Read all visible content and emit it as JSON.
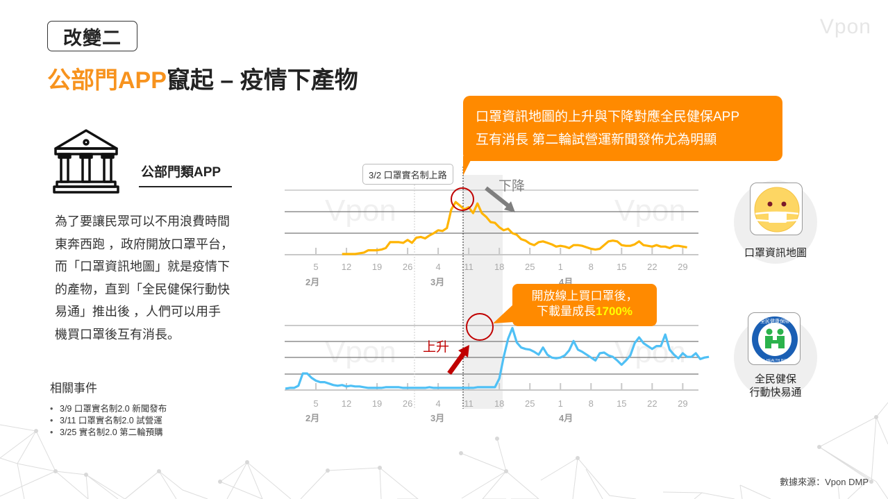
{
  "brand": "Vpon",
  "header": {
    "tag": "改變二",
    "title_accent": "公部門APP",
    "title_rest": "竄起 – 疫情下產物"
  },
  "category": {
    "icon": "government-building-icon",
    "label": "公部門類APP"
  },
  "description": [
    "為了要讓民眾可以不用浪費時間",
    "東奔西跑 ，政府開放口罩平台，",
    "而「口罩資訊地圖」就是疫情下",
    "的產物，直到「全民健保行動快",
    "易通」推出後 ，人們可以用手",
    "機買口罩後互有消長。"
  ],
  "events": {
    "title": "相關事件",
    "items": [
      "3/9 口罩實名制2.0 新聞發布",
      "3/11 口罩實名制2.0 試營運",
      "3/25 實名制2.0 第二輪預購"
    ]
  },
  "callouts": {
    "top_line1": "口罩資訊地圖的上升與下降對應全民健保APP",
    "top_line2": "互有消長 第二輪試營運新聞發佈尤為明顯",
    "bottom_line1": "開放線上買口罩後，",
    "bottom_line2_prefix": "下載量成長",
    "bottom_line2_highlight": "1700%",
    "date_tag": "3/2 口罩實名制上路",
    "down_label": "下降",
    "up_label": "上升"
  },
  "apps": [
    {
      "name": "口罩資訊地圖",
      "icon": "mask-face-icon"
    },
    {
      "name_line1": "全民健保",
      "name_line2": "行動快易通",
      "icon": "nhi-logo-icon"
    }
  ],
  "source": "數據來源：Vpon DMP",
  "colors": {
    "accent": "#f7931e",
    "callout": "#ff8a00",
    "series_mask_map": "#ffb400",
    "series_nhi": "#4fc0f5",
    "highlight_circle": "#c00000",
    "up_arrow": "#c00000",
    "down_arrow": "#7f7f7f",
    "highlight_band": "#efefef"
  },
  "chart_data": [
    {
      "type": "line",
      "title": "口罩資訊地圖",
      "xlabel": "",
      "ylabel": "",
      "x_ticks": [
        "5",
        "12",
        "19",
        "26",
        "4",
        "11",
        "18",
        "25",
        "1",
        "8",
        "15",
        "22",
        "29"
      ],
      "month_labels": [
        "2月",
        "3月",
        "4月"
      ],
      "grid": true,
      "ylim": [
        0,
        100
      ],
      "annotations": [
        "3/2 口罩實名制上路",
        "下降"
      ],
      "series": [
        {
          "name": "口罩資訊地圖",
          "color": "#ffb400",
          "start_date": "2/11",
          "values": [
            0,
            0,
            0,
            0,
            1,
            2,
            5,
            5,
            5,
            6,
            8,
            16,
            16,
            16,
            15,
            19,
            15,
            22,
            23,
            21,
            25,
            28,
            32,
            31,
            35,
            60,
            70,
            65,
            60,
            63,
            55,
            68,
            55,
            50,
            43,
            42,
            36,
            32,
            34,
            28,
            26,
            20,
            18,
            14,
            12,
            16,
            17,
            15,
            13,
            10,
            11,
            10,
            8,
            12,
            12,
            11,
            9,
            7,
            6,
            7,
            12,
            17,
            18,
            17,
            12,
            11,
            11,
            13,
            17,
            12,
            11,
            10,
            12,
            10,
            10,
            8,
            11,
            11,
            10,
            9
          ]
        }
      ]
    },
    {
      "type": "line",
      "title": "全民健保行動快易通",
      "xlabel": "",
      "ylabel": "",
      "x_ticks": [
        "5",
        "12",
        "19",
        "26",
        "4",
        "11",
        "18",
        "25",
        "1",
        "8",
        "15",
        "22",
        "29"
      ],
      "month_labels": [
        "2月",
        "3月",
        "4月"
      ],
      "grid": true,
      "ylim": [
        0,
        100
      ],
      "annotations": [
        "上升",
        "開放線上買口罩後，下載量成長1700%"
      ],
      "series": [
        {
          "name": "全民健保行動快易通",
          "color": "#4fc0f5",
          "start_date": "2/1",
          "values": [
            1,
            2,
            2,
            5,
            22,
            22,
            16,
            12,
            10,
            10,
            8,
            6,
            5,
            6,
            4,
            5,
            4,
            4,
            3,
            2,
            2,
            2,
            2,
            3,
            3,
            3,
            3,
            2,
            2,
            2,
            2,
            2,
            2,
            3,
            2,
            2,
            2,
            2,
            2,
            2,
            2,
            2,
            2,
            2,
            3,
            3,
            3,
            3,
            3,
            15,
            45,
            70,
            85,
            65,
            58,
            56,
            55,
            52,
            48,
            58,
            48,
            44,
            43,
            44,
            47,
            54,
            67,
            55,
            52,
            48,
            44,
            40,
            50,
            51,
            47,
            45,
            40,
            34,
            40,
            47,
            64,
            72,
            64,
            60,
            56,
            60,
            60,
            76,
            55,
            48,
            43,
            50,
            45,
            45,
            50,
            42,
            44,
            45
          ]
        }
      ]
    }
  ]
}
